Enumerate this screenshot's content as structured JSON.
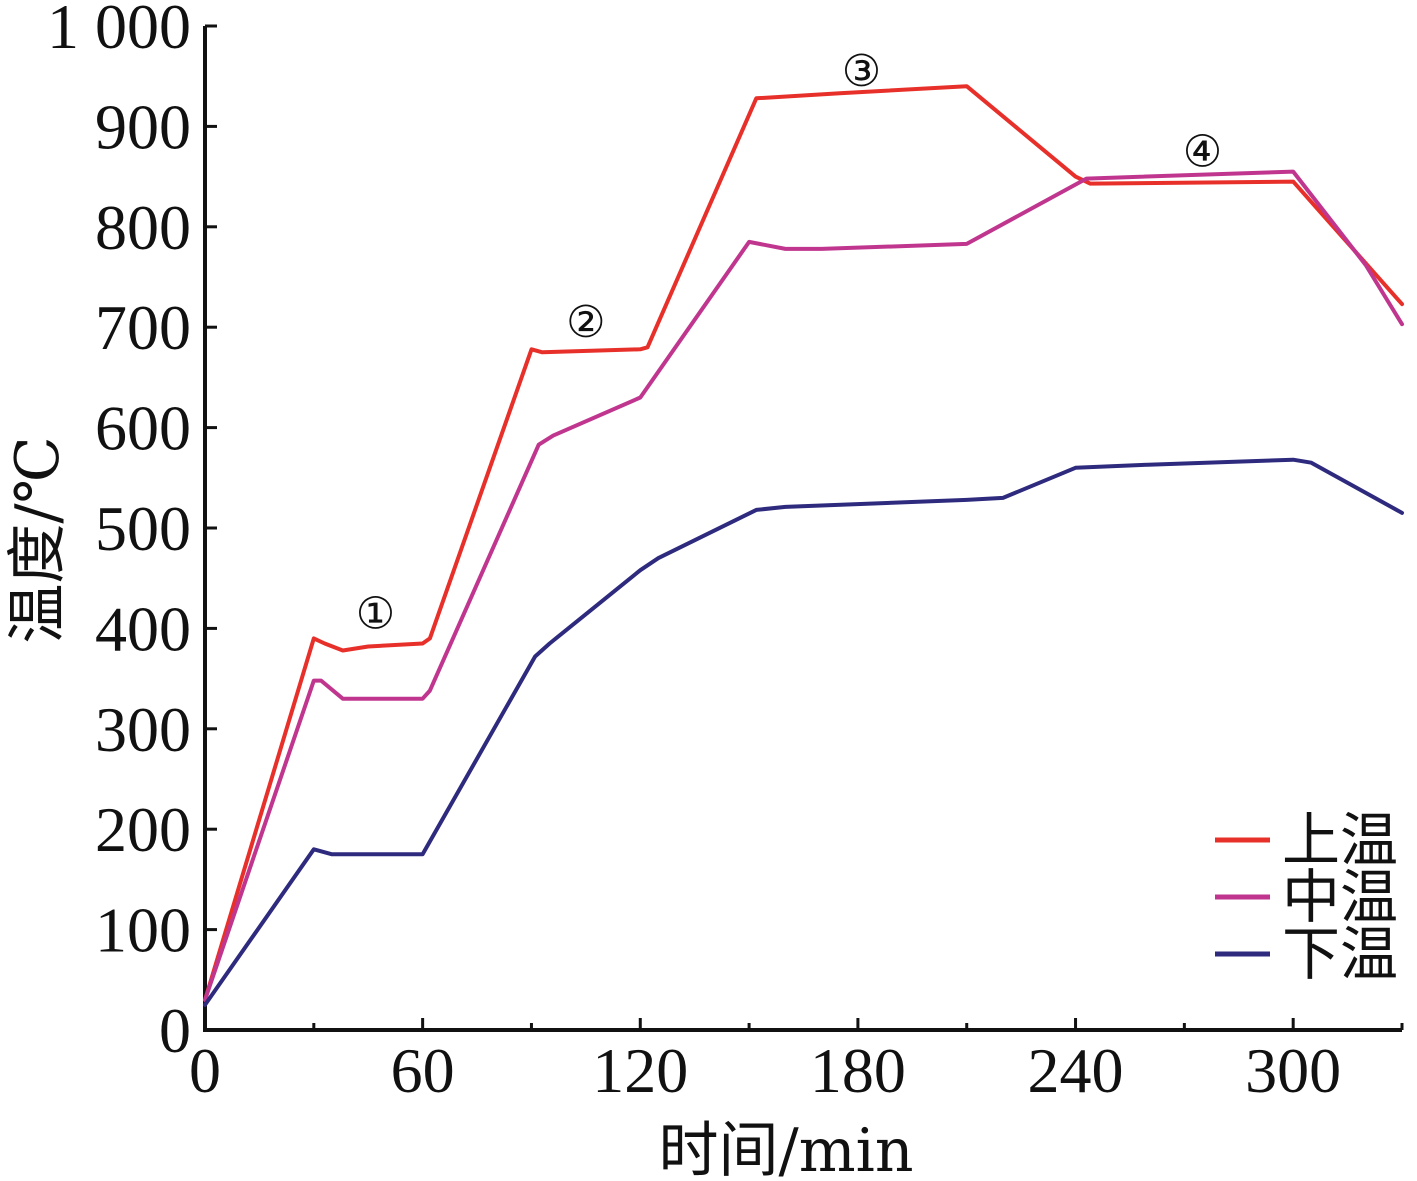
{
  "chart_data": {
    "type": "line",
    "title": "",
    "xlabel": "时间/min",
    "ylabel": "温度/℃",
    "xlim": [
      0,
      330
    ],
    "ylim": [
      0,
      1000
    ],
    "xticks": [
      0,
      60,
      120,
      180,
      240,
      300
    ],
    "xtick_labels": [
      "0",
      "60",
      "120",
      "180",
      "240",
      "300"
    ],
    "yticks": [
      0,
      100,
      200,
      300,
      400,
      500,
      600,
      700,
      800,
      900,
      1000
    ],
    "ytick_labels": [
      "0",
      "100",
      "200",
      "300",
      "400",
      "500",
      "600",
      "700",
      "800",
      "900",
      "1 000"
    ],
    "grid": false,
    "legend_position": "bottom-right",
    "series": [
      {
        "name": "上温",
        "color": "#e8302a",
        "points": [
          [
            0,
            30
          ],
          [
            30,
            390
          ],
          [
            33,
            385
          ],
          [
            38,
            378
          ],
          [
            45,
            382
          ],
          [
            60,
            385
          ],
          [
            62,
            390
          ],
          [
            90,
            678
          ],
          [
            93,
            675
          ],
          [
            120,
            678
          ],
          [
            122,
            680
          ],
          [
            152,
            928
          ],
          [
            175,
            933
          ],
          [
            210,
            940
          ],
          [
            240,
            850
          ],
          [
            244,
            843
          ],
          [
            300,
            845
          ],
          [
            330,
            723
          ]
        ]
      },
      {
        "name": "中温",
        "color": "#c0368f",
        "points": [
          [
            0,
            30
          ],
          [
            30,
            348
          ],
          [
            32,
            348
          ],
          [
            38,
            330
          ],
          [
            60,
            330
          ],
          [
            62,
            338
          ],
          [
            92,
            583
          ],
          [
            96,
            592
          ],
          [
            120,
            630
          ],
          [
            150,
            785
          ],
          [
            160,
            778
          ],
          [
            170,
            778
          ],
          [
            210,
            783
          ],
          [
            243,
            848
          ],
          [
            300,
            855
          ],
          [
            320,
            762
          ],
          [
            330,
            703
          ]
        ]
      },
      {
        "name": "下温",
        "color": "#2e2a7e",
        "points": [
          [
            0,
            25
          ],
          [
            30,
            180
          ],
          [
            32,
            178
          ],
          [
            35,
            175
          ],
          [
            60,
            175
          ],
          [
            91,
            372
          ],
          [
            95,
            385
          ],
          [
            120,
            458
          ],
          [
            125,
            470
          ],
          [
            152,
            518
          ],
          [
            160,
            521
          ],
          [
            210,
            528
          ],
          [
            220,
            530
          ],
          [
            240,
            560
          ],
          [
            260,
            563
          ],
          [
            300,
            568
          ],
          [
            305,
            565
          ],
          [
            330,
            515
          ]
        ]
      }
    ],
    "annotations": [
      {
        "label": "①",
        "x": 47,
        "y": 415
      },
      {
        "label": "②",
        "x": 105,
        "y": 705
      },
      {
        "label": "③",
        "x": 181,
        "y": 955
      },
      {
        "label": "④",
        "x": 275,
        "y": 875
      }
    ]
  }
}
